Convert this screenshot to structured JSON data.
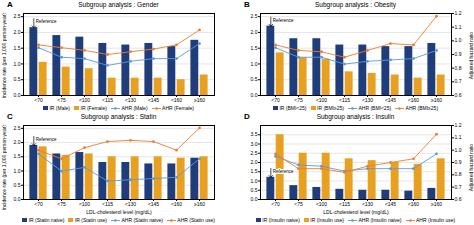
{
  "chart_data": [
    {
      "type": "bar",
      "panel_label": "A",
      "title": "Subgroup analysis : Gender",
      "categories": [
        "<70",
        "<75",
        "<100",
        "<115",
        "<130",
        "<145",
        "<160",
        "≥160"
      ],
      "series": [
        {
          "name": "IR (Male)",
          "type": "bar",
          "color": "#1F3D7A",
          "values": [
            2.15,
            1.9,
            1.85,
            1.65,
            1.6,
            1.65,
            1.55,
            1.75
          ]
        },
        {
          "name": "IR (Female)",
          "type": "bar",
          "color": "#E8A020",
          "values": [
            1.05,
            0.9,
            0.85,
            0.55,
            0.55,
            0.55,
            0.5,
            0.65
          ]
        },
        {
          "name": "AHR (Male)",
          "type": "line",
          "axis": "y2",
          "color": "#5B9BD5",
          "marker": "circle",
          "values": [
            0.95,
            0.88,
            0.87,
            0.82,
            0.85,
            0.87,
            0.87,
            0.98
          ]
        },
        {
          "name": "AHR (Female)",
          "type": "line",
          "axis": "y2",
          "color": "#ED7D31",
          "marker": "circle",
          "values": [
            0.97,
            0.95,
            0.93,
            0.9,
            0.92,
            0.94,
            0.97,
            1.08
          ]
        }
      ],
      "ylabel": "Incidence rate (per 1,000 person-year)",
      "ylim": [
        0,
        2.6
      ],
      "yticks": [
        {
          "value": 0,
          "label": "0.0"
        },
        0.5,
        {
          "value": 1,
          "label": "1.0"
        },
        1.5,
        {
          "value": 2,
          "label": "2.0"
        },
        2.5
      ],
      "y2lim": [
        0.6,
        1.2
      ],
      "grid": true,
      "legend": "bottom",
      "annotations": [
        {
          "text": "Reference",
          "category": "<70",
          "series": "IR (Male)"
        }
      ]
    },
    {
      "type": "bar",
      "panel_label": "B",
      "title": "Subgroup analysis : Obesity",
      "categories": [
        "<70",
        "<75",
        "<100",
        "<115",
        "<130",
        "<145",
        "<160",
        "≥160"
      ],
      "series": [
        {
          "name": "IR (BMI<25)",
          "type": "bar",
          "color": "#1F3D7A",
          "values": [
            2.2,
            1.8,
            1.8,
            1.6,
            1.6,
            1.55,
            1.55,
            1.65
          ]
        },
        {
          "name": "IR (BMI≥25)",
          "type": "bar",
          "color": "#E8A020",
          "values": [
            1.35,
            1.2,
            1.15,
            0.75,
            0.7,
            0.65,
            0.55,
            0.65
          ]
        },
        {
          "name": "AHR (BMI<25)",
          "type": "line",
          "axis": "y2",
          "color": "#5B9BD5",
          "marker": "circle",
          "values": [
            0.95,
            0.88,
            0.88,
            0.83,
            0.85,
            0.86,
            0.87,
            0.93
          ]
        },
        {
          "name": "AHR (BMI≥25)",
          "type": "line",
          "axis": "y2",
          "color": "#ED7D31",
          "marker": "circle",
          "values": [
            0.97,
            0.93,
            0.92,
            0.88,
            0.93,
            0.98,
            0.97,
            1.18
          ]
        }
      ],
      "y2label": "Adjusted hazard ratio",
      "ylim": [
        0,
        2.6
      ],
      "yticks": [
        {
          "value": 0,
          "label": "0.0"
        },
        0.5,
        {
          "value": 1,
          "label": "1.0"
        },
        1.5,
        {
          "value": 2,
          "label": "2.0"
        },
        2.5
      ],
      "y2lim": [
        0.6,
        1.2
      ],
      "y2ticks": [
        0.6,
        0.7,
        0.8,
        0.9,
        {
          "value": 1,
          "label": "1.0"
        },
        1.1,
        1.2
      ],
      "grid": true,
      "legend": "bottom",
      "annotations": [
        {
          "text": "Reference",
          "category": "<70",
          "series": "IR (BMI<25)"
        }
      ]
    },
    {
      "type": "bar",
      "panel_label": "C",
      "title": "Subgroup analysis : Statin",
      "categories": [
        "<70",
        "<75",
        "<100",
        "<115",
        "<130",
        "<145",
        "<160",
        "≥160"
      ],
      "series": [
        {
          "name": "IR (Statin naive)",
          "type": "bar",
          "color": "#1F3D7A",
          "values": [
            1.9,
            1.6,
            1.65,
            1.3,
            1.3,
            1.25,
            1.25,
            1.45
          ]
        },
        {
          "name": "IR (Statin use)",
          "type": "bar",
          "color": "#E8A020",
          "values": [
            1.85,
            1.55,
            1.6,
            1.5,
            1.5,
            1.5,
            1.45,
            1.5
          ]
        },
        {
          "name": "AHR (Statin naive)",
          "type": "line",
          "axis": "y2",
          "color": "#5B9BD5",
          "marker": "circle",
          "values": [
            0.97,
            0.83,
            0.86,
            0.75,
            0.76,
            0.77,
            0.78,
            0.93
          ]
        },
        {
          "name": "AHR (Statin use)",
          "type": "line",
          "axis": "y2",
          "color": "#ED7D31",
          "marker": "circle",
          "values": [
            1.0,
            0.93,
            1.02,
            1.07,
            1.08,
            1.07,
            1.0,
            1.18
          ]
        }
      ],
      "ylabel": "Incidence rate (per 1,000 person-year)",
      "xlabel": "LDL-cholesterol level (mg/dL)",
      "ylim": [
        0,
        2.6
      ],
      "yticks": [
        {
          "value": 0,
          "label": "0.0"
        },
        0.5,
        {
          "value": 1,
          "label": "1.0"
        },
        1.5,
        {
          "value": 2,
          "label": "2.0"
        },
        2.5
      ],
      "y2lim": [
        0.6,
        1.2
      ],
      "grid": true,
      "legend": "bottom",
      "annotations": [
        {
          "text": "Reference",
          "category": "<70",
          "series": "IR (Statin naive)"
        }
      ]
    },
    {
      "type": "bar",
      "panel_label": "D",
      "title": "Subgroup analysis : Insulin",
      "categories": [
        "<70",
        "<75",
        "<100",
        "<115",
        "<130",
        "<145",
        "<160",
        "≥160"
      ],
      "series": [
        {
          "name": "IR (Insulin naive)",
          "type": "bar",
          "color": "#1F3D7A",
          "values": [
            1.2,
            0.75,
            0.65,
            0.55,
            0.5,
            0.5,
            0.45,
            0.6
          ]
        },
        {
          "name": "IR (Insulin use)",
          "type": "bar",
          "color": "#E8A020",
          "values": [
            3.5,
            2.5,
            2.5,
            2.2,
            2.1,
            2.0,
            1.9,
            2.2
          ]
        },
        {
          "name": "AHR (Insulin naive)",
          "type": "line",
          "axis": "y2",
          "color": "#5B9BD5",
          "marker": "circle",
          "values": [
            0.95,
            0.88,
            0.87,
            0.83,
            0.85,
            0.85,
            0.85,
            0.97
          ]
        },
        {
          "name": "AHR (Insulin use)",
          "type": "line",
          "axis": "y2",
          "color": "#ED7D31",
          "marker": "circle",
          "values": [
            0.97,
            0.85,
            0.85,
            0.82,
            0.87,
            0.9,
            0.93,
            1.13
          ]
        }
      ],
      "y2label": "Adjusted hazard ratio",
      "xlabel": "LDL-cholesterol level (mg/dL)",
      "ylim": [
        0,
        4.0
      ],
      "yticks": [
        {
          "value": 0,
          "label": "0.0"
        },
        0.5,
        {
          "value": 1,
          "label": "1.0"
        },
        1.5,
        {
          "value": 2,
          "label": "2.0"
        },
        2.5,
        {
          "value": 3,
          "label": "3.0"
        },
        3.5
      ],
      "y2lim": [
        0.6,
        1.2
      ],
      "y2ticks": [
        0.6,
        0.7,
        0.8,
        0.9,
        {
          "value": 1,
          "label": "1.0"
        },
        1.1,
        1.2
      ],
      "grid": true,
      "legend": "bottom",
      "annotations": [
        {
          "text": "Reference",
          "category": "<70",
          "series": "IR (Insulin naive)"
        }
      ]
    }
  ]
}
